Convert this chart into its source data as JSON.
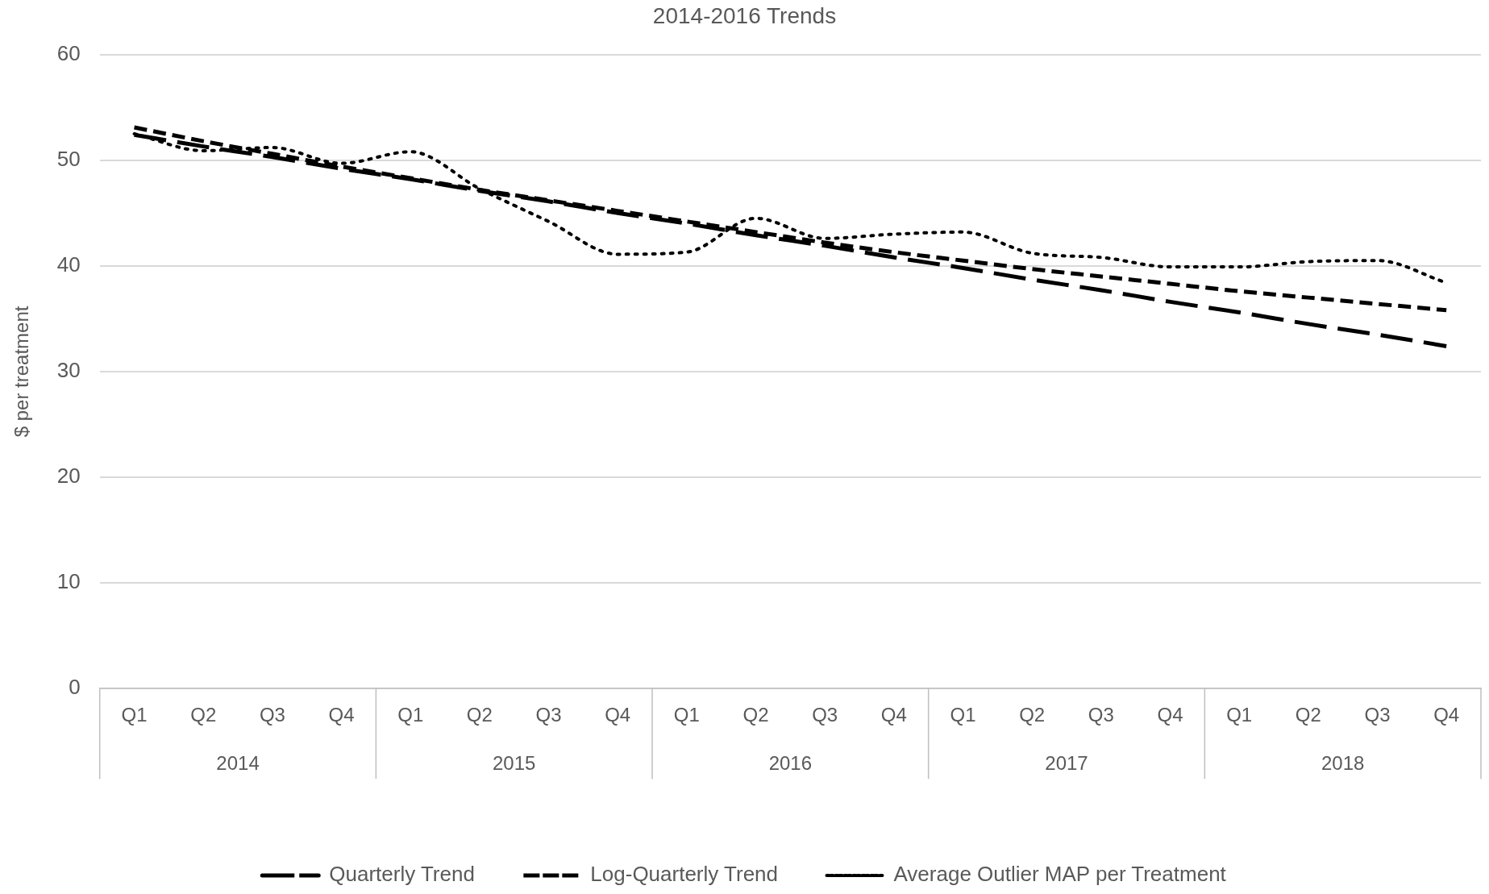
{
  "chart_data": {
    "type": "line",
    "title": "2014-2016 Trends",
    "ylabel": "$ per treatment",
    "categories": [
      "Q1",
      "Q2",
      "Q3",
      "Q4",
      "Q1",
      "Q2",
      "Q3",
      "Q4",
      "Q1",
      "Q2",
      "Q3",
      "Q4",
      "Q1",
      "Q2",
      "Q3",
      "Q4",
      "Q1",
      "Q2",
      "Q3",
      "Q4"
    ],
    "annotations": [
      "2014",
      "2015",
      "2016",
      "2017",
      "2018"
    ],
    "series": [
      {
        "name": "Quarterly Trend",
        "color": "#000000",
        "line_style": "long-dashed",
        "values": [
          52.4,
          51.3,
          50.3,
          49.2,
          48.2,
          47.1,
          46.1,
          45.0,
          44.0,
          42.9,
          41.9,
          40.8,
          39.8,
          38.7,
          37.7,
          36.6,
          35.6,
          34.5,
          33.5,
          32.4
        ]
      },
      {
        "name": "Log-Quarterly Trend",
        "color": "#000000",
        "line_style": "dashed",
        "values": [
          53.1,
          51.8,
          50.6,
          49.4,
          48.3,
          47.2,
          46.2,
          45.2,
          44.2,
          43.2,
          42.2,
          41.3,
          40.5,
          39.7,
          39.0,
          38.3,
          37.6,
          37.0,
          36.4,
          35.8
        ]
      },
      {
        "name": "Average Outlier MAP per Treatment",
        "color": "#000000",
        "line_style": "dotted",
        "values": [
          52.5,
          50.9,
          51.2,
          49.7,
          50.8,
          47.3,
          44.2,
          41.1,
          41.3,
          44.5,
          42.6,
          43.0,
          43.2,
          41.2,
          40.8,
          39.9,
          39.9,
          40.4,
          40.5,
          38.4
        ]
      }
    ],
    "ylim": [
      0,
      60
    ],
    "yticks": [
      0,
      10,
      20,
      30,
      40,
      50,
      60
    ],
    "grid": "y",
    "legend": "bottom",
    "marker": "none"
  }
}
